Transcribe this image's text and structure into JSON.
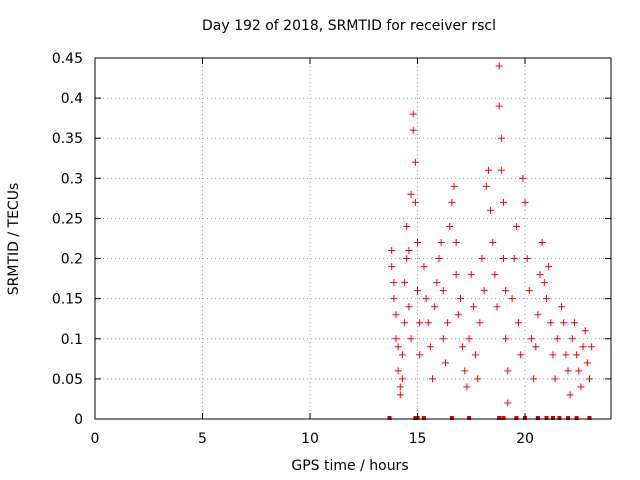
{
  "chart_data": {
    "type": "scatter",
    "title": "Day 192 of 2018, SRMTID for receiver rscl",
    "xlabel": "GPS time / hours",
    "ylabel": "SRMTID / TECUs",
    "xlim": [
      0,
      24
    ],
    "ylim": [
      0,
      0.45
    ],
    "xticks": [
      "0",
      "5",
      "10",
      "15",
      "20"
    ],
    "yticks": [
      "0",
      "0.05",
      "0.1",
      "0.15",
      "0.2",
      "0.25",
      "0.3",
      "0.35",
      "0.4",
      "0.45"
    ],
    "grid": true,
    "marker": "plus",
    "series": [
      {
        "color": "#ff0000",
        "points": [
          [
            13.8,
            0.21
          ],
          [
            13.8,
            0.19
          ],
          [
            13.9,
            0.17
          ],
          [
            13.9,
            0.15
          ],
          [
            14.0,
            0.13
          ],
          [
            14.0,
            0.1
          ],
          [
            14.1,
            0.09
          ],
          [
            14.1,
            0.06
          ],
          [
            14.2,
            0.04
          ],
          [
            14.2,
            0.03
          ],
          [
            14.3,
            0.05
          ],
          [
            14.3,
            0.08
          ],
          [
            14.4,
            0.12
          ],
          [
            14.4,
            0.17
          ],
          [
            14.5,
            0.2
          ],
          [
            14.5,
            0.24
          ],
          [
            14.6,
            0.21
          ],
          [
            14.6,
            0.14
          ],
          [
            14.7,
            0.1
          ],
          [
            14.7,
            0.28
          ],
          [
            14.8,
            0.38
          ],
          [
            14.8,
            0.36
          ],
          [
            14.9,
            0.32
          ],
          [
            14.9,
            0.27
          ],
          [
            15.0,
            0.22
          ],
          [
            15.0,
            0.16
          ],
          [
            15.1,
            0.12
          ],
          [
            15.1,
            0.08
          ],
          [
            15.3,
            0.19
          ],
          [
            15.4,
            0.15
          ],
          [
            15.5,
            0.12
          ],
          [
            15.6,
            0.09
          ],
          [
            15.7,
            0.05
          ],
          [
            15.8,
            0.14
          ],
          [
            15.9,
            0.17
          ],
          [
            16.0,
            0.2
          ],
          [
            16.1,
            0.22
          ],
          [
            16.2,
            0.16
          ],
          [
            16.2,
            0.1
          ],
          [
            16.3,
            0.07
          ],
          [
            16.4,
            0.12
          ],
          [
            16.5,
            0.24
          ],
          [
            16.6,
            0.27
          ],
          [
            16.7,
            0.29
          ],
          [
            16.8,
            0.22
          ],
          [
            16.8,
            0.18
          ],
          [
            16.9,
            0.13
          ],
          [
            17.0,
            0.15
          ],
          [
            17.1,
            0.09
          ],
          [
            17.2,
            0.06
          ],
          [
            17.3,
            0.04
          ],
          [
            17.4,
            0.1
          ],
          [
            17.5,
            0.18
          ],
          [
            17.6,
            0.14
          ],
          [
            17.7,
            0.08
          ],
          [
            17.8,
            0.05
          ],
          [
            17.9,
            0.12
          ],
          [
            18.0,
            0.2
          ],
          [
            18.1,
            0.16
          ],
          [
            18.2,
            0.29
          ],
          [
            18.3,
            0.31
          ],
          [
            18.4,
            0.26
          ],
          [
            18.5,
            0.22
          ],
          [
            18.6,
            0.18
          ],
          [
            18.7,
            0.14
          ],
          [
            18.8,
            0.44
          ],
          [
            18.8,
            0.39
          ],
          [
            18.9,
            0.35
          ],
          [
            18.9,
            0.31
          ],
          [
            19.0,
            0.27
          ],
          [
            19.0,
            0.2
          ],
          [
            19.1,
            0.16
          ],
          [
            19.1,
            0.1
          ],
          [
            19.2,
            0.06
          ],
          [
            19.2,
            0.02
          ],
          [
            19.4,
            0.15
          ],
          [
            19.5,
            0.2
          ],
          [
            19.6,
            0.24
          ],
          [
            19.7,
            0.12
          ],
          [
            19.8,
            0.08
          ],
          [
            19.9,
            0.3
          ],
          [
            20.0,
            0.27
          ],
          [
            20.1,
            0.2
          ],
          [
            20.2,
            0.16
          ],
          [
            20.3,
            0.1
          ],
          [
            20.4,
            0.05
          ],
          [
            20.5,
            0.09
          ],
          [
            20.6,
            0.13
          ],
          [
            20.7,
            0.18
          ],
          [
            20.8,
            0.22
          ],
          [
            20.9,
            0.17
          ],
          [
            21.0,
            0.15
          ],
          [
            21.1,
            0.19
          ],
          [
            21.2,
            0.12
          ],
          [
            21.3,
            0.08
          ],
          [
            21.4,
            0.05
          ],
          [
            21.5,
            0.1
          ],
          [
            21.7,
            0.14
          ],
          [
            21.8,
            0.12
          ],
          [
            21.9,
            0.08
          ],
          [
            22.0,
            0.06
          ],
          [
            22.1,
            0.03
          ],
          [
            22.2,
            0.1
          ],
          [
            22.3,
            0.12
          ],
          [
            22.4,
            0.08
          ],
          [
            22.5,
            0.06
          ],
          [
            22.6,
            0.04
          ],
          [
            22.7,
            0.09
          ],
          [
            22.8,
            0.11
          ],
          [
            22.9,
            0.07
          ],
          [
            23.0,
            0.05
          ],
          [
            23.1,
            0.09
          ]
        ],
        "zero_markers": [
          13.7,
          14.9,
          15.0,
          15.3,
          16.6,
          17.4,
          18.8,
          19.0,
          19.6,
          20.0,
          20.6,
          21.0,
          21.3,
          21.6,
          22.0,
          22.4,
          23.0
        ]
      }
    ]
  }
}
